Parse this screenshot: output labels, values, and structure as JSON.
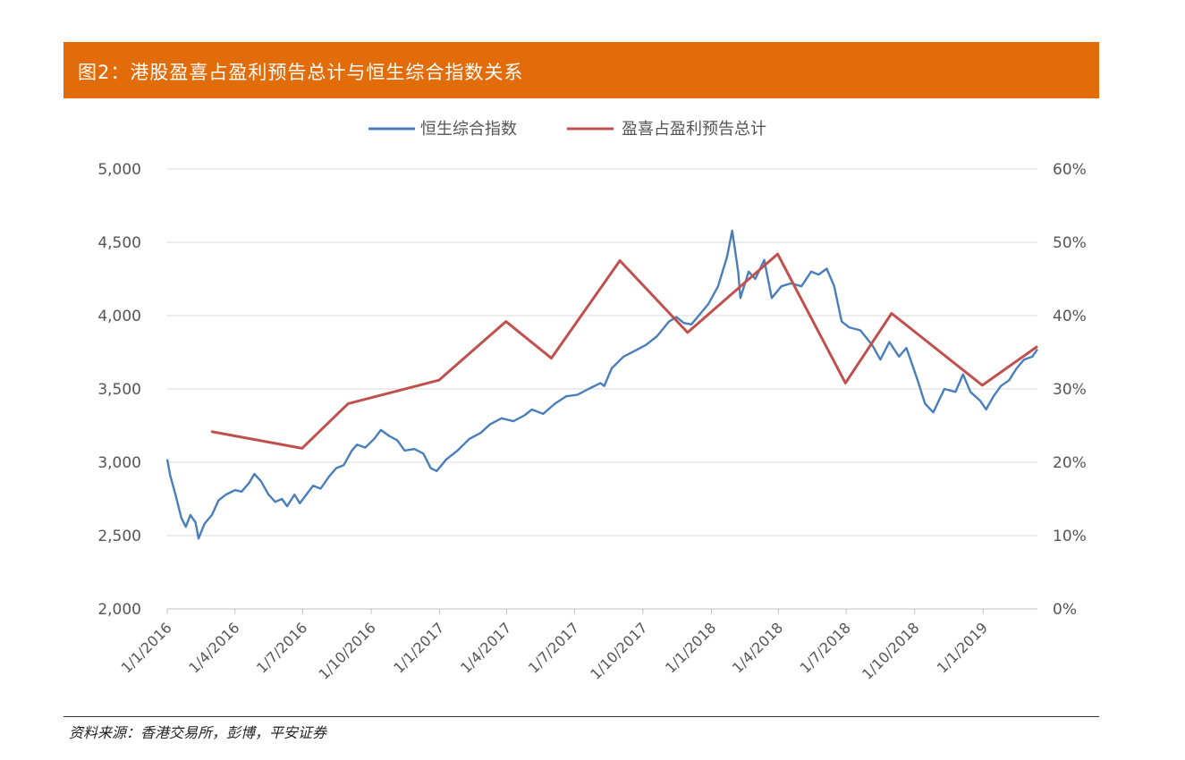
{
  "banner": {
    "title": "图2：港股盈喜占盈利预告总计与恒生综合指数关系",
    "color": "#E36C0A"
  },
  "source": "资料来源：香港交易所，彭博，平安证券",
  "chart_data": {
    "type": "line",
    "title": "",
    "grid": true,
    "legend": {
      "placement": "top-center",
      "entries": [
        "恒生综合指数",
        "盈喜占盈利预告总计"
      ]
    },
    "x_ticks": [
      "1/1/2016",
      "1/4/2016",
      "1/7/2016",
      "1/10/2016",
      "1/1/2017",
      "1/4/2017",
      "1/7/2017",
      "1/10/2017",
      "1/1/2018",
      "1/4/2018",
      "1/7/2018",
      "1/10/2018",
      "1/1/2019"
    ],
    "x_range": [
      "2016-01-01",
      "2019-03-15"
    ],
    "y_left": {
      "range": [
        2000,
        5000
      ],
      "ticks": [
        "2,000",
        "2,500",
        "3,000",
        "3,500",
        "4,000",
        "4,500",
        "5,000"
      ]
    },
    "y_right": {
      "range": [
        0,
        60
      ],
      "ticks": [
        "0%",
        "10%",
        "20%",
        "30%",
        "40%",
        "50%",
        "60%"
      ]
    },
    "series": [
      {
        "name": "恒生综合指数",
        "axis": "left",
        "color": "#4A7EBB",
        "points": [
          [
            "2016-01-01",
            3020
          ],
          [
            "2016-01-05",
            2910
          ],
          [
            "2016-01-12",
            2780
          ],
          [
            "2016-01-20",
            2620
          ],
          [
            "2016-01-26",
            2560
          ],
          [
            "2016-02-01",
            2640
          ],
          [
            "2016-02-08",
            2590
          ],
          [
            "2016-02-12",
            2480
          ],
          [
            "2016-02-20",
            2580
          ],
          [
            "2016-03-01",
            2640
          ],
          [
            "2016-03-10",
            2740
          ],
          [
            "2016-03-20",
            2780
          ],
          [
            "2016-04-01",
            2810
          ],
          [
            "2016-04-10",
            2800
          ],
          [
            "2016-04-20",
            2860
          ],
          [
            "2016-04-27",
            2920
          ],
          [
            "2016-05-06",
            2870
          ],
          [
            "2016-05-16",
            2780
          ],
          [
            "2016-05-25",
            2730
          ],
          [
            "2016-06-03",
            2750
          ],
          [
            "2016-06-10",
            2700
          ],
          [
            "2016-06-20",
            2780
          ],
          [
            "2016-06-27",
            2720
          ],
          [
            "2016-07-06",
            2780
          ],
          [
            "2016-07-15",
            2840
          ],
          [
            "2016-07-25",
            2820
          ],
          [
            "2016-08-05",
            2900
          ],
          [
            "2016-08-15",
            2960
          ],
          [
            "2016-08-25",
            2980
          ],
          [
            "2016-09-05",
            3080
          ],
          [
            "2016-09-12",
            3120
          ],
          [
            "2016-09-23",
            3100
          ],
          [
            "2016-10-05",
            3160
          ],
          [
            "2016-10-14",
            3220
          ],
          [
            "2016-10-25",
            3180
          ],
          [
            "2016-11-05",
            3150
          ],
          [
            "2016-11-15",
            3080
          ],
          [
            "2016-11-28",
            3090
          ],
          [
            "2016-12-10",
            3060
          ],
          [
            "2016-12-20",
            2960
          ],
          [
            "2016-12-28",
            2940
          ],
          [
            "2017-01-10",
            3020
          ],
          [
            "2017-01-25",
            3080
          ],
          [
            "2017-02-10",
            3160
          ],
          [
            "2017-02-25",
            3200
          ],
          [
            "2017-03-10",
            3260
          ],
          [
            "2017-03-25",
            3300
          ],
          [
            "2017-04-10",
            3280
          ],
          [
            "2017-04-25",
            3320
          ],
          [
            "2017-05-05",
            3360
          ],
          [
            "2017-05-20",
            3330
          ],
          [
            "2017-06-05",
            3400
          ],
          [
            "2017-06-20",
            3450
          ],
          [
            "2017-07-05",
            3460
          ],
          [
            "2017-07-20",
            3500
          ],
          [
            "2017-08-05",
            3540
          ],
          [
            "2017-08-10",
            3520
          ],
          [
            "2017-08-20",
            3640
          ],
          [
            "2017-09-05",
            3720
          ],
          [
            "2017-09-20",
            3760
          ],
          [
            "2017-10-05",
            3800
          ],
          [
            "2017-10-20",
            3860
          ],
          [
            "2017-11-05",
            3960
          ],
          [
            "2017-11-15",
            3990
          ],
          [
            "2017-11-25",
            3950
          ],
          [
            "2017-12-05",
            3940
          ],
          [
            "2017-12-15",
            4000
          ],
          [
            "2017-12-28",
            4080
          ],
          [
            "2018-01-10",
            4200
          ],
          [
            "2018-01-22",
            4400
          ],
          [
            "2018-01-29",
            4580
          ],
          [
            "2018-02-06",
            4300
          ],
          [
            "2018-02-09",
            4120
          ],
          [
            "2018-02-20",
            4300
          ],
          [
            "2018-03-01",
            4250
          ],
          [
            "2018-03-13",
            4380
          ],
          [
            "2018-03-23",
            4120
          ],
          [
            "2018-04-05",
            4200
          ],
          [
            "2018-04-18",
            4220
          ],
          [
            "2018-05-02",
            4200
          ],
          [
            "2018-05-15",
            4300
          ],
          [
            "2018-05-25",
            4280
          ],
          [
            "2018-06-05",
            4320
          ],
          [
            "2018-06-15",
            4200
          ],
          [
            "2018-06-25",
            3960
          ],
          [
            "2018-07-05",
            3920
          ],
          [
            "2018-07-20",
            3900
          ],
          [
            "2018-08-05",
            3800
          ],
          [
            "2018-08-16",
            3700
          ],
          [
            "2018-08-28",
            3820
          ],
          [
            "2018-09-10",
            3720
          ],
          [
            "2018-09-20",
            3780
          ],
          [
            "2018-10-05",
            3560
          ],
          [
            "2018-10-15",
            3400
          ],
          [
            "2018-10-26",
            3340
          ],
          [
            "2018-11-10",
            3500
          ],
          [
            "2018-11-25",
            3480
          ],
          [
            "2018-12-05",
            3600
          ],
          [
            "2018-12-15",
            3480
          ],
          [
            "2018-12-28",
            3420
          ],
          [
            "2019-01-05",
            3360
          ],
          [
            "2019-01-15",
            3450
          ],
          [
            "2019-01-25",
            3520
          ],
          [
            "2019-02-05",
            3560
          ],
          [
            "2019-02-15",
            3640
          ],
          [
            "2019-02-25",
            3700
          ],
          [
            "2019-03-08",
            3720
          ],
          [
            "2019-03-15",
            3770
          ]
        ]
      },
      {
        "name": "盈喜占盈利预告总计",
        "axis": "right",
        "color": "#C0504D",
        "points": [
          [
            "2016-02-29",
            24.2
          ],
          [
            "2016-06-30",
            21.9
          ],
          [
            "2016-08-31",
            28.0
          ],
          [
            "2016-12-31",
            31.2
          ],
          [
            "2017-03-31",
            39.2
          ],
          [
            "2017-05-31",
            34.2
          ],
          [
            "2017-08-31",
            47.5
          ],
          [
            "2017-11-30",
            37.7
          ],
          [
            "2018-03-31",
            48.4
          ],
          [
            "2018-06-30",
            30.8
          ],
          [
            "2018-08-31",
            40.3
          ],
          [
            "2018-12-31",
            30.5
          ],
          [
            "2019-03-15",
            35.8
          ]
        ]
      }
    ]
  }
}
